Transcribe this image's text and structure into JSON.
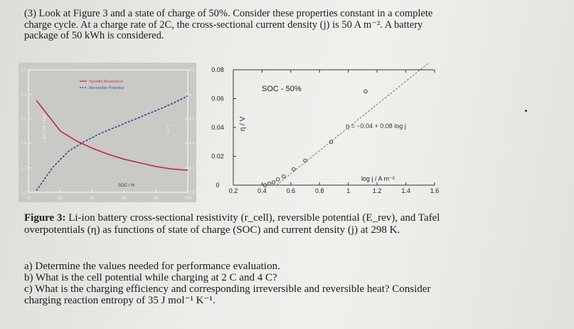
{
  "problem": {
    "line1": "(3) Look at Figure 3 and a state of charge of 50%. Consider these properties constant in a complete",
    "line2": "charge cycle. At a charge rate of 2C, the cross-sectional current density (j) is 50 A m⁻². A battery",
    "line3": "package of 50 kWh is considered."
  },
  "chart_data": [
    {
      "type": "line",
      "legend": [
        "Specific Resistance",
        "Reversible Potential"
      ],
      "legend_placement": "top-left",
      "xlabel": "SOC / %",
      "ylabel_left": "r_cell / 10⁻³ Ωm²",
      "ylabel_right": "E / V",
      "x_ticks": [
        "0",
        "20",
        "40",
        "60",
        "80",
        "100"
      ],
      "y_left_ticks": [
        "1.5",
        "1.7",
        "1.9",
        "2.1",
        "2.3",
        "2.5"
      ],
      "y_right_ticks": [
        "2.8",
        "3.1",
        "3.4",
        "3.7",
        "4",
        "4.3"
      ],
      "xlim": [
        0,
        100
      ],
      "ylim_left": [
        1.5,
        2.5
      ],
      "ylim_right": [
        2.8,
        4.3
      ],
      "series": [
        {
          "name": "Specific Resistance",
          "axis": "left",
          "x": [
            5,
            20,
            30,
            40,
            50,
            60,
            70,
            80,
            90,
            100
          ],
          "y": [
            2.25,
            2.0,
            1.92,
            1.86,
            1.81,
            1.77,
            1.74,
            1.71,
            1.69,
            1.68
          ]
        },
        {
          "name": "Reversible Potential",
          "axis": "right",
          "x": [
            5,
            15,
            25,
            35,
            45,
            55,
            65,
            75,
            85,
            95,
            100
          ],
          "y": [
            2.82,
            3.1,
            3.3,
            3.42,
            3.52,
            3.6,
            3.68,
            3.76,
            3.84,
            3.93,
            3.98
          ]
        }
      ]
    },
    {
      "type": "scatter",
      "annotation_soc": "SOC - 50%",
      "annotation_eq": "η = −0.04 + 0.08 log j",
      "xlabel": "log j  / A m⁻²",
      "ylabel": "η / V",
      "x_ticks": [
        "0.2",
        "0.4",
        "0.6",
        "0.8",
        "1",
        "1.2",
        "1.4",
        "1.6"
      ],
      "y_ticks": [
        "0",
        "0.02",
        "0.04",
        "0.06",
        "0.08"
      ],
      "xlim": [
        0.2,
        1.6
      ],
      "ylim": [
        0,
        0.08
      ],
      "points": [
        [
          0.42,
          0.0
        ],
        [
          0.45,
          0.001
        ],
        [
          0.48,
          0.002
        ],
        [
          0.51,
          0.004
        ],
        [
          0.55,
          0.006
        ],
        [
          0.62,
          0.011
        ],
        [
          0.7,
          0.017
        ],
        [
          0.88,
          0.03
        ],
        [
          1.12,
          0.065
        ]
      ],
      "fit_line": {
        "x": [
          0.5,
          1.6
        ],
        "y": [
          0.0,
          0.088
        ]
      }
    }
  ],
  "caption": {
    "label": "Figure 3:",
    "line1": " Li-ion battery cross-sectional resistivity (r_cell), reversible potential (E_rev), and Tafel",
    "line2": "overpotentials (η) as functions of state of charge (SOC) and current density (j) at 298 K."
  },
  "questions": {
    "a": "a) Determine the values needed for performance evaluation.",
    "b": "b) What is the cell potential while charging at 2 C and 4 C?",
    "c1": "c) What is the charging efficiency and corresponding irreversible and reversible heat? Consider",
    "c2": "charging reaction entropy of 35 J mol⁻¹ K⁻¹."
  }
}
